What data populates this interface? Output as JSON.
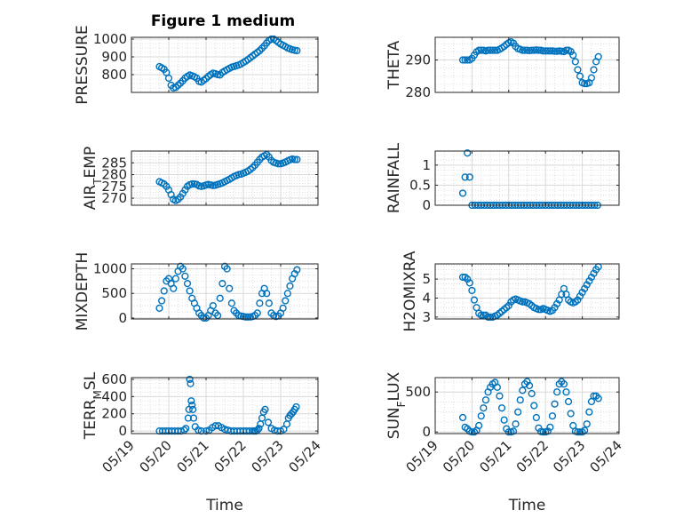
{
  "figure": {
    "title": "Figure 1 medium"
  },
  "colors": {
    "marker": "#0072BD",
    "axis": "#262626",
    "grid": "#D9D9D9"
  },
  "x_ticks": [
    "05/19",
    "05/20",
    "05/21",
    "05/22",
    "05/23",
    "05/24"
  ],
  "x_label": "Time",
  "chart_data": [
    {
      "type": "scatter",
      "ylabel": "PRESSURE",
      "ylim": [
        700,
        1010
      ],
      "yticks": [
        800,
        900,
        1000
      ],
      "x": [
        "05/19 18:00",
        "05/19 19:30",
        "05/19 21:00",
        "05/19 22:30",
        "05/20 00:00",
        "05/20 01:30",
        "05/20 03:00",
        "05/20 04:30",
        "05/20 06:00",
        "05/20 07:30",
        "05/20 09:00",
        "05/20 10:30",
        "05/20 12:00",
        "05/20 13:30",
        "05/20 15:00",
        "05/20 16:30",
        "05/20 18:00",
        "05/20 19:30",
        "05/20 21:00",
        "05/20 22:30",
        "05/21 00:00",
        "05/21 01:30",
        "05/21 03:00",
        "05/21 04:30",
        "05/21 06:00",
        "05/21 07:30",
        "05/21 09:00",
        "05/21 10:30",
        "05/21 12:00",
        "05/21 13:30",
        "05/21 15:00",
        "05/21 16:30",
        "05/21 18:00",
        "05/21 19:30",
        "05/21 21:00",
        "05/21 22:30",
        "05/22 00:00",
        "05/22 01:30",
        "05/22 03:00",
        "05/22 04:30",
        "05/22 06:00",
        "05/22 07:30",
        "05/22 09:00",
        "05/22 10:30",
        "05/22 12:00",
        "05/22 13:30",
        "05/22 15:00",
        "05/22 16:30",
        "05/22 18:00",
        "05/22 19:30",
        "05/22 21:00",
        "05/22 22:30",
        "05/23 00:00",
        "05/23 01:30",
        "05/23 03:00",
        "05/23 04:30",
        "05/23 06:00",
        "05/23 07:30",
        "05/23 09:00",
        "05/23 10:30"
      ],
      "y": [
        845,
        838,
        830,
        812,
        780,
        740,
        725,
        728,
        740,
        752,
        765,
        780,
        790,
        798,
        793,
        788,
        780,
        762,
        758,
        768,
        778,
        790,
        800,
        808,
        805,
        800,
        798,
        812,
        820,
        828,
        835,
        842,
        846,
        850,
        854,
        860,
        868,
        876,
        885,
        895,
        905,
        915,
        925,
        935,
        948,
        962,
        978,
        992,
        1000,
        1000,
        992,
        982,
        972,
        965,
        958,
        950,
        945,
        940,
        937,
        935
      ]
    },
    {
      "type": "scatter",
      "ylabel": "THETA",
      "ylim": [
        280,
        297
      ],
      "yticks": [
        280,
        290
      ],
      "x": [
        "05/19 18:00",
        "05/19 19:30",
        "05/19 21:00",
        "05/19 22:30",
        "05/20 00:00",
        "05/20 01:30",
        "05/20 03:00",
        "05/20 04:30",
        "05/20 06:00",
        "05/20 07:30",
        "05/20 09:00",
        "05/20 10:30",
        "05/20 12:00",
        "05/20 13:30",
        "05/20 15:00",
        "05/20 16:30",
        "05/20 18:00",
        "05/20 19:30",
        "05/20 21:00",
        "05/20 22:30",
        "05/21 00:00",
        "05/21 01:30",
        "05/21 03:00",
        "05/21 04:30",
        "05/21 06:00",
        "05/21 07:30",
        "05/21 09:00",
        "05/21 10:30",
        "05/21 12:00",
        "05/21 13:30",
        "05/21 15:00",
        "05/21 16:30",
        "05/21 18:00",
        "05/21 19:30",
        "05/21 21:00",
        "05/21 22:30",
        "05/22 00:00",
        "05/22 01:30",
        "05/22 03:00",
        "05/22 04:30",
        "05/22 06:00",
        "05/22 07:30",
        "05/22 09:00",
        "05/22 10:30",
        "05/22 12:00",
        "05/22 13:30",
        "05/22 15:00",
        "05/22 16:30",
        "05/22 18:00",
        "05/22 19:30",
        "05/22 21:00",
        "05/22 22:30",
        "05/23 00:00",
        "05/23 01:30",
        "05/23 03:00",
        "05/23 04:30",
        "05/23 06:00",
        "05/23 07:30",
        "05/23 09:00",
        "05/23 10:30"
      ],
      "y": [
        290,
        290,
        290,
        290,
        290.5,
        291.5,
        292.5,
        293,
        293,
        293,
        292.8,
        293,
        293,
        293,
        293,
        293,
        293.3,
        293.7,
        294.2,
        294.8,
        295.3,
        295.6,
        295.2,
        294.2,
        293.5,
        293.3,
        293,
        293,
        293,
        292.9,
        293,
        293,
        293.1,
        293,
        293,
        292.8,
        292.8,
        292.8,
        292.8,
        292.8,
        292.7,
        292.7,
        292.8,
        292.7,
        292.6,
        293,
        293,
        292.6,
        291.5,
        289.5,
        287,
        285,
        283,
        282.7,
        282.7,
        283,
        284.5,
        287,
        289.5,
        291
      ]
    },
    {
      "type": "scatter",
      "ylabel": "AIR_TEMP",
      "ylim": [
        267,
        290
      ],
      "yticks": [
        270,
        275,
        280,
        285
      ],
      "x": [
        "05/19 18:00",
        "05/19 19:30",
        "05/19 21:00",
        "05/19 22:30",
        "05/20 00:00",
        "05/20 01:30",
        "05/20 03:00",
        "05/20 04:30",
        "05/20 06:00",
        "05/20 07:30",
        "05/20 09:00",
        "05/20 10:30",
        "05/20 12:00",
        "05/20 13:30",
        "05/20 15:00",
        "05/20 16:30",
        "05/20 18:00",
        "05/20 19:30",
        "05/20 21:00",
        "05/20 22:30",
        "05/21 00:00",
        "05/21 01:30",
        "05/21 03:00",
        "05/21 04:30",
        "05/21 06:00",
        "05/21 07:30",
        "05/21 09:00",
        "05/21 10:30",
        "05/21 12:00",
        "05/21 13:30",
        "05/21 15:00",
        "05/21 16:30",
        "05/21 18:00",
        "05/21 19:30",
        "05/21 21:00",
        "05/21 22:30",
        "05/22 00:00",
        "05/22 01:30",
        "05/22 03:00",
        "05/22 04:30",
        "05/22 06:00",
        "05/22 07:30",
        "05/22 09:00",
        "05/22 10:30",
        "05/22 12:00",
        "05/22 13:30",
        "05/22 15:00",
        "05/22 16:30",
        "05/22 18:00",
        "05/22 19:30",
        "05/22 21:00",
        "05/22 22:30",
        "05/23 00:00",
        "05/23 01:30",
        "05/23 03:00",
        "05/23 04:30",
        "05/23 06:00",
        "05/23 07:30",
        "05/23 09:00",
        "05/23 10:30"
      ],
      "y": [
        277,
        276.5,
        276,
        275,
        273.5,
        271.5,
        269.5,
        269,
        269.5,
        270.5,
        272,
        273.5,
        275,
        275.7,
        276,
        276,
        275.8,
        275.2,
        275,
        275.2,
        275.6,
        275.8,
        275.6,
        275.4,
        275.5,
        275.8,
        276.1,
        276.5,
        277,
        277.5,
        278,
        278.6,
        279.2,
        279.6,
        280,
        280.2,
        280.6,
        281,
        281.5,
        282.2,
        283,
        284,
        285.2,
        286.4,
        287.4,
        288,
        288.5,
        287.5,
        286,
        285.2,
        284.9,
        284.6,
        284.6,
        284.9,
        285.3,
        285.8,
        286.3,
        286.6,
        286.4,
        286.4
      ]
    },
    {
      "type": "scatter",
      "ylabel": "RAINFALL",
      "ylim": [
        0,
        1.35
      ],
      "yticks": [
        0,
        0.5,
        1
      ],
      "x": [
        "05/19 18:00",
        "05/19 19:30",
        "05/19 21:00",
        "05/19 22:30",
        "05/20 00:00",
        "05/20 02:00",
        "05/20 04:00",
        "05/20 06:00",
        "05/20 08:00",
        "05/20 10:00",
        "05/20 12:00",
        "05/20 14:00",
        "05/20 16:00",
        "05/20 18:00",
        "05/20 20:00",
        "05/20 22:00",
        "05/21 00:00",
        "05/21 02:00",
        "05/21 04:00",
        "05/21 06:00",
        "05/21 08:00",
        "05/21 10:00",
        "05/21 12:00",
        "05/21 14:00",
        "05/21 16:00",
        "05/21 18:00",
        "05/21 20:00",
        "05/21 22:00",
        "05/22 00:00",
        "05/22 02:00",
        "05/22 04:00",
        "05/22 06:00",
        "05/22 08:00",
        "05/22 10:00",
        "05/22 12:00",
        "05/22 14:00",
        "05/22 16:00",
        "05/22 18:00",
        "05/22 20:00",
        "05/22 22:00",
        "05/23 00:00",
        "05/23 02:00",
        "05/23 04:00",
        "05/23 06:00",
        "05/23 08:00",
        "05/23 10:00"
      ],
      "y": [
        0.3,
        0.7,
        1.3,
        0.7,
        0,
        0,
        0,
        0,
        0,
        0,
        0,
        0,
        0,
        0,
        0,
        0,
        0,
        0,
        0,
        0,
        0,
        0,
        0,
        0,
        0,
        0,
        0,
        0,
        0,
        0,
        0,
        0,
        0,
        0,
        0,
        0,
        0,
        0,
        0,
        0,
        0,
        0,
        0,
        0,
        0,
        0
      ]
    },
    {
      "type": "scatter",
      "ylabel": "MIXDEPTH",
      "ylim": [
        -20,
        1100
      ],
      "yticks": [
        0,
        500,
        1000
      ],
      "x": [
        "05/19 18:00",
        "05/19 19:30",
        "05/19 21:00",
        "05/19 22:30",
        "05/20 00:00",
        "05/20 01:30",
        "05/20 03:00",
        "05/20 04:30",
        "05/20 06:00",
        "05/20 07:30",
        "05/20 09:00",
        "05/20 10:30",
        "05/20 12:00",
        "05/20 13:30",
        "05/20 15:00",
        "05/20 16:30",
        "05/20 18:00",
        "05/20 19:30",
        "05/20 21:00",
        "05/20 22:30",
        "05/21 00:00",
        "05/21 01:30",
        "05/21 03:00",
        "05/21 04:30",
        "05/21 06:00",
        "05/21 07:30",
        "05/21 09:00",
        "05/21 10:30",
        "05/21 12:00",
        "05/21 13:30",
        "05/21 15:00",
        "05/21 16:30",
        "05/21 18:00",
        "05/21 19:30",
        "05/21 21:00",
        "05/21 22:30",
        "05/22 00:00",
        "05/22 01:30",
        "05/22 03:00",
        "05/22 04:30",
        "05/22 06:00",
        "05/22 07:30",
        "05/22 09:00",
        "05/22 10:30",
        "05/22 12:00",
        "05/22 13:30",
        "05/22 15:00",
        "05/22 16:30",
        "05/22 18:00",
        "05/22 19:30",
        "05/22 21:00",
        "05/22 22:30",
        "05/23 00:00",
        "05/23 01:30",
        "05/23 03:00",
        "05/23 04:30",
        "05/23 06:00",
        "05/23 07:30",
        "05/23 09:00",
        "05/23 10:30"
      ],
      "y": [
        200,
        350,
        550,
        750,
        800,
        700,
        600,
        800,
        950,
        1050,
        1000,
        850,
        700,
        550,
        400,
        300,
        200,
        100,
        50,
        0,
        0,
        50,
        150,
        250,
        100,
        50,
        400,
        700,
        1050,
        1000,
        600,
        300,
        150,
        100,
        50,
        40,
        30,
        20,
        20,
        20,
        30,
        50,
        100,
        300,
        500,
        600,
        500,
        300,
        100,
        50,
        30,
        40,
        100,
        200,
        350,
        500,
        650,
        800,
        900,
        980
      ]
    },
    {
      "type": "scatter",
      "ylabel": "H2OMIXRA",
      "ylim": [
        2.9,
        5.8
      ],
      "yticks": [
        3,
        4,
        5
      ],
      "x": [
        "05/19 18:00",
        "05/19 19:30",
        "05/19 21:00",
        "05/19 22:30",
        "05/20 00:00",
        "05/20 01:30",
        "05/20 03:00",
        "05/20 04:30",
        "05/20 06:00",
        "05/20 07:30",
        "05/20 09:00",
        "05/20 10:30",
        "05/20 12:00",
        "05/20 13:30",
        "05/20 15:00",
        "05/20 16:30",
        "05/20 18:00",
        "05/20 19:30",
        "05/20 21:00",
        "05/20 22:30",
        "05/21 00:00",
        "05/21 01:30",
        "05/21 03:00",
        "05/21 04:30",
        "05/21 06:00",
        "05/21 07:30",
        "05/21 09:00",
        "05/21 10:30",
        "05/21 12:00",
        "05/21 13:30",
        "05/21 15:00",
        "05/21 16:30",
        "05/21 18:00",
        "05/21 19:30",
        "05/21 21:00",
        "05/21 22:30",
        "05/22 00:00",
        "05/22 01:30",
        "05/22 03:00",
        "05/22 04:30",
        "05/22 06:00",
        "05/22 07:30",
        "05/22 09:00",
        "05/22 10:30",
        "05/22 12:00",
        "05/22 13:30",
        "05/22 15:00",
        "05/22 16:30",
        "05/22 18:00",
        "05/22 19:30",
        "05/22 21:00",
        "05/22 22:30",
        "05/23 00:00",
        "05/23 01:30",
        "05/23 03:00",
        "05/23 04:30",
        "05/23 06:00",
        "05/23 07:30",
        "05/23 09:00",
        "05/23 10:30"
      ],
      "y": [
        5.1,
        5.1,
        5.0,
        4.8,
        4.4,
        3.9,
        3.5,
        3.2,
        3.1,
        3.1,
        3.1,
        3.0,
        3.0,
        3.0,
        3.05,
        3.1,
        3.2,
        3.3,
        3.4,
        3.5,
        3.6,
        3.8,
        3.9,
        3.95,
        3.9,
        3.85,
        3.8,
        3.8,
        3.75,
        3.7,
        3.6,
        3.5,
        3.45,
        3.4,
        3.4,
        3.45,
        3.4,
        3.35,
        3.3,
        3.35,
        3.5,
        3.7,
        3.9,
        4.2,
        4.5,
        4.2,
        3.9,
        3.8,
        3.75,
        3.8,
        3.9,
        4.1,
        4.3,
        4.5,
        4.7,
        4.9,
        5.1,
        5.3,
        5.5,
        5.65
      ]
    },
    {
      "type": "scatter",
      "ylabel": "TERR_MSL",
      "ylim": [
        -30,
        620
      ],
      "yticks": [
        0,
        200,
        400,
        600
      ],
      "x": [
        "05/19 18:00",
        "05/19 20:00",
        "05/19 22:00",
        "05/20 00:00",
        "05/20 02:00",
        "05/20 04:00",
        "05/20 06:00",
        "05/20 08:00",
        "05/20 10:00",
        "05/20 11:00",
        "05/20 12:30",
        "05/20 13:00",
        "05/20 13:30",
        "05/20 14:00",
        "05/20 14:30",
        "05/20 15:00",
        "05/20 15:30",
        "05/20 16:00",
        "05/20 17:00",
        "05/20 19:00",
        "05/20 21:00",
        "05/21 00:00",
        "05/21 02:00",
        "05/21 04:00",
        "05/21 06:00",
        "05/21 08:00",
        "05/21 10:00",
        "05/21 12:00",
        "05/21 14:00",
        "05/21 16:00",
        "05/21 18:00",
        "05/21 20:00",
        "05/21 22:00",
        "05/22 00:00",
        "05/22 02:00",
        "05/22 04:00",
        "05/22 06:00",
        "05/22 07:00",
        "05/22 08:00",
        "05/22 09:00",
        "05/22 10:00",
        "05/22 11:00",
        "05/22 12:00",
        "05/22 13:00",
        "05/22 14:00",
        "05/22 16:00",
        "05/22 18:00",
        "05/22 20:00",
        "05/22 22:00",
        "05/23 00:00",
        "05/23 02:00",
        "05/23 04:00",
        "05/23 05:00",
        "05/23 06:00",
        "05/23 07:00",
        "05/23 08:00",
        "05/23 09:00",
        "05/23 10:00"
      ],
      "y": [
        0,
        0,
        0,
        0,
        0,
        0,
        0,
        0,
        10,
        30,
        150,
        250,
        600,
        550,
        350,
        300,
        250,
        150,
        50,
        10,
        0,
        0,
        10,
        40,
        60,
        60,
        40,
        20,
        10,
        0,
        0,
        0,
        0,
        0,
        0,
        0,
        0,
        0,
        0,
        10,
        30,
        80,
        150,
        220,
        250,
        100,
        30,
        10,
        0,
        0,
        20,
        80,
        150,
        180,
        200,
        220,
        250,
        280
      ]
    },
    {
      "type": "scatter",
      "ylabel": "SUN_FLUX",
      "ylim": [
        -20,
        680
      ],
      "yticks": [
        0,
        500
      ],
      "x": [
        "05/19 18:00",
        "05/19 19:30",
        "05/19 21:00",
        "05/19 22:30",
        "05/20 00:00",
        "05/20 01:30",
        "05/20 03:00",
        "05/20 04:30",
        "05/20 06:00",
        "05/20 07:30",
        "05/20 09:00",
        "05/20 10:30",
        "05/20 12:00",
        "05/20 13:30",
        "05/20 15:00",
        "05/20 16:30",
        "05/20 18:00",
        "05/20 19:30",
        "05/20 21:00",
        "05/20 22:30",
        "05/21 00:00",
        "05/21 01:30",
        "05/21 03:00",
        "05/21 04:30",
        "05/21 06:00",
        "05/21 07:30",
        "05/21 09:00",
        "05/21 10:30",
        "05/21 12:00",
        "05/21 13:30",
        "05/21 15:00",
        "05/21 16:30",
        "05/21 18:00",
        "05/21 19:30",
        "05/21 21:00",
        "05/21 22:30",
        "05/22 00:00",
        "05/22 01:30",
        "05/22 03:00",
        "05/22 04:30",
        "05/22 06:00",
        "05/22 07:30",
        "05/22 09:00",
        "05/22 10:30",
        "05/22 12:00",
        "05/22 13:30",
        "05/22 15:00",
        "05/22 16:30",
        "05/22 18:00",
        "05/22 19:30",
        "05/22 21:00",
        "05/22 22:30",
        "05/23 00:00",
        "05/23 01:30",
        "05/23 03:00",
        "05/23 04:30",
        "05/23 06:00",
        "05/23 07:30",
        "05/23 09:00",
        "05/23 10:30"
      ],
      "y": [
        180,
        60,
        40,
        10,
        0,
        0,
        20,
        80,
        200,
        300,
        400,
        500,
        560,
        600,
        620,
        560,
        450,
        300,
        150,
        40,
        0,
        0,
        10,
        100,
        250,
        400,
        520,
        600,
        630,
        580,
        480,
        330,
        180,
        50,
        5,
        0,
        0,
        10,
        60,
        200,
        350,
        500,
        600,
        630,
        600,
        500,
        380,
        230,
        80,
        10,
        0,
        0,
        0,
        20,
        100,
        250,
        380,
        450,
        450,
        420
      ]
    }
  ]
}
